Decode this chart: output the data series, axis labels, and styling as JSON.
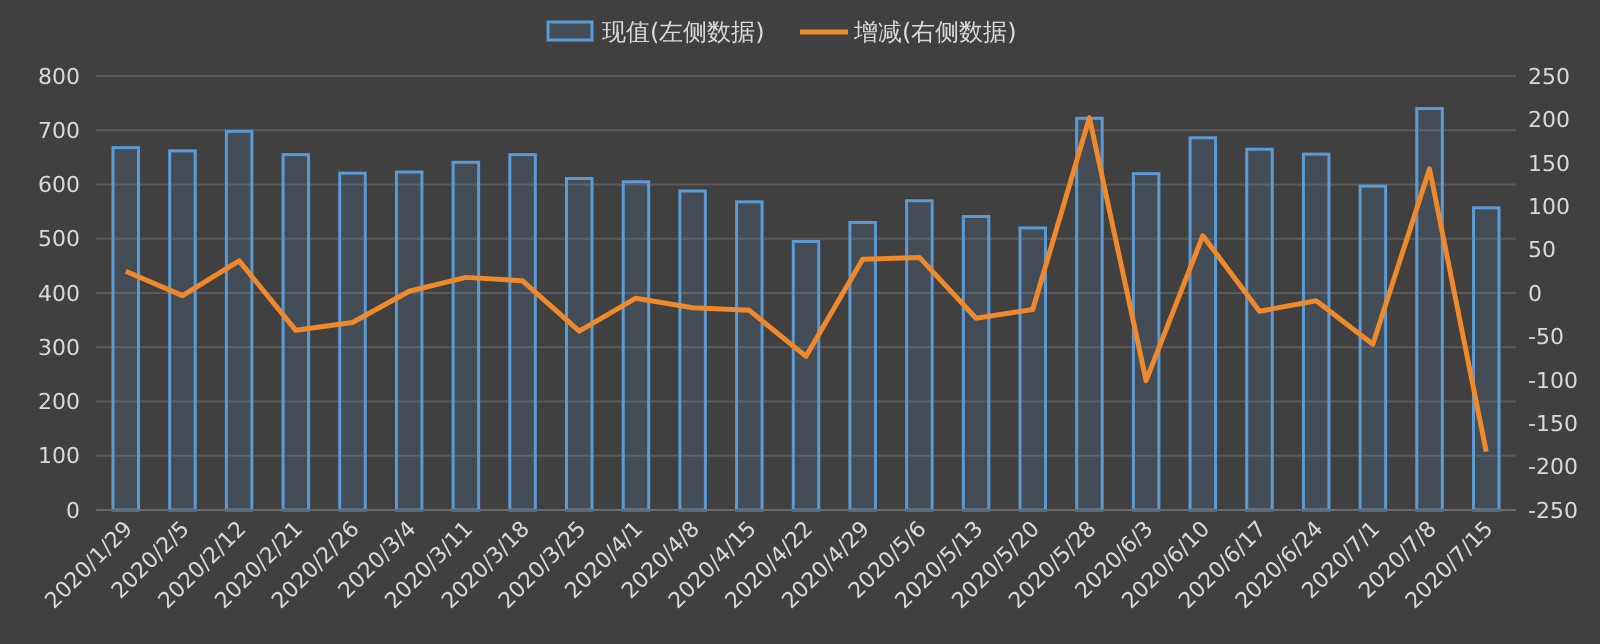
{
  "chart_data": {
    "type": "bar",
    "categories": [
      "2020/1/29",
      "2020/2/5",
      "2020/2/12",
      "2020/2/21",
      "2020/2/26",
      "2020/3/4",
      "2020/3/11",
      "2020/3/18",
      "2020/3/25",
      "2020/4/1",
      "2020/4/8",
      "2020/4/15",
      "2020/4/22",
      "2020/4/29",
      "2020/5/6",
      "2020/5/13",
      "2020/5/20",
      "2020/5/28",
      "2020/6/3",
      "2020/6/10",
      "2020/6/17",
      "2020/6/24",
      "2020/7/1",
      "2020/7/8",
      "2020/7/15"
    ],
    "series": [
      {
        "name": "现值(左侧数据)",
        "color": "#5b9bd5",
        "values": [
          668,
          662,
          698,
          655,
          621,
          623,
          641,
          655,
          611,
          605,
          588,
          568,
          495,
          530,
          570,
          541,
          520,
          722,
          620,
          686,
          665,
          656,
          597,
          740,
          557
        ]
      },
      {
        "name": "增减(右侧数据)",
        "type": "line",
        "axis": "y2",
        "color": "#f0892b",
        "values": [
          25,
          -3,
          37,
          -43,
          -34,
          2,
          18,
          14,
          -44,
          -6,
          -17,
          -20,
          -73,
          39,
          41,
          -29,
          -19,
          202,
          -101,
          66,
          -21,
          -9,
          -59,
          143,
          -183
        ]
      }
    ],
    "ylim": [
      0,
      800
    ],
    "yticks": [
      0,
      100,
      200,
      300,
      400,
      500,
      600,
      700,
      800
    ],
    "y2lim": [
      -250,
      250
    ],
    "y2ticks": [
      -250,
      -200,
      -150,
      -100,
      -50,
      0,
      50,
      100,
      150,
      200,
      250
    ],
    "grid": "y",
    "legend": "top",
    "marker": "none",
    "line_style": "solid"
  }
}
